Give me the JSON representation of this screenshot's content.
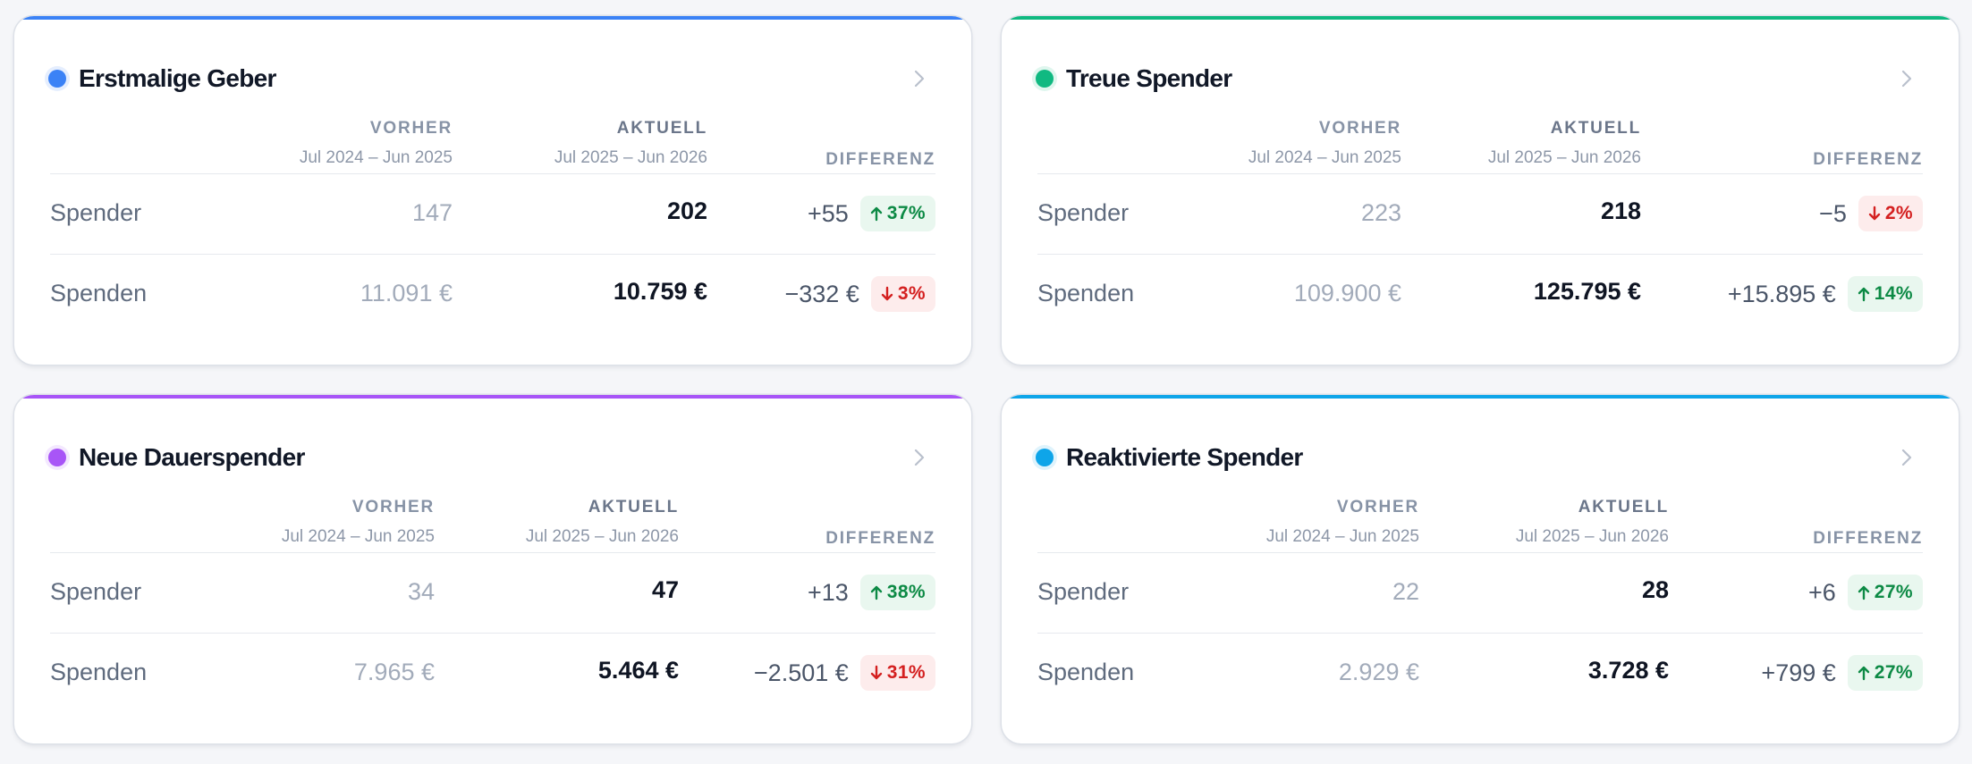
{
  "columns": {
    "prev_label": "VORHER",
    "prev_range": "Jul 2024 – Jun 2025",
    "cur_label": "AKTUELL",
    "cur_range": "Jul 2025 – Jun 2026",
    "diff_label": "DIFFERENZ"
  },
  "cards": [
    {
      "title": "Erstmalige Geber",
      "accent_color": "#3b82f6",
      "rows": [
        {
          "label": "Spender",
          "prev": "147",
          "cur": "202",
          "diff": "+55",
          "pct": "37%",
          "trend": "up"
        },
        {
          "label": "Spenden",
          "prev": "11.091 €",
          "cur": "10.759 €",
          "diff": "−332 €",
          "pct": "3%",
          "trend": "down"
        }
      ]
    },
    {
      "title": "Treue Spender",
      "accent_color": "#10b981",
      "rows": [
        {
          "label": "Spender",
          "prev": "223",
          "cur": "218",
          "diff": "−5",
          "pct": "2%",
          "trend": "down"
        },
        {
          "label": "Spenden",
          "prev": "109.900 €",
          "cur": "125.795 €",
          "diff": "+15.895 €",
          "pct": "14%",
          "trend": "up"
        }
      ]
    },
    {
      "title": "Neue Dauerspender",
      "accent_color": "#a855f7",
      "rows": [
        {
          "label": "Spender",
          "prev": "34",
          "cur": "47",
          "diff": "+13",
          "pct": "38%",
          "trend": "up"
        },
        {
          "label": "Spenden",
          "prev": "7.965 €",
          "cur": "5.464 €",
          "diff": "−2.501 €",
          "pct": "31%",
          "trend": "down"
        }
      ]
    },
    {
      "title": "Reaktivierte Spender",
      "accent_color": "#0ea5e9",
      "rows": [
        {
          "label": "Spender",
          "prev": "22",
          "cur": "28",
          "diff": "+6",
          "pct": "27%",
          "trend": "up"
        },
        {
          "label": "Spenden",
          "prev": "2.929 €",
          "cur": "3.728 €",
          "diff": "+799 €",
          "pct": "27%",
          "trend": "up"
        }
      ]
    }
  ]
}
